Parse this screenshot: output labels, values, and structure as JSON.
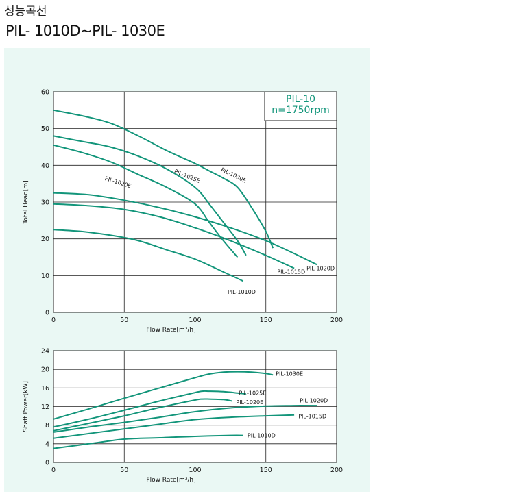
{
  "page": {
    "section_title": "성능곡선",
    "model_title": "PIL- 1010D~PIL- 1030E"
  },
  "colors": {
    "curve": "#12957a",
    "panel_background": "#eaf8f4",
    "grid": "#222222"
  },
  "chart_data": [
    {
      "type": "line",
      "xlabel": "Flow Rate[m³/h]",
      "ylabel": "Total Head[m]",
      "xlim": [
        0,
        200
      ],
      "ylim": [
        0,
        60
      ],
      "xticks": [
        "0",
        "50",
        "100",
        "150",
        "200"
      ],
      "yticks": [
        "0",
        "10",
        "20",
        "30",
        "40",
        "50",
        "60"
      ],
      "grid": true,
      "annotation": [
        "PIL-10",
        "n=1750rpm"
      ],
      "series": [
        {
          "name": "PIL-1030E",
          "x": [
            0,
            20,
            40,
            60,
            80,
            100,
            110,
            120,
            130,
            140,
            150,
            155
          ],
          "y": [
            55,
            53.5,
            51.5,
            48,
            44,
            40.5,
            38.5,
            36.5,
            34,
            28.5,
            22,
            17.5
          ]
        },
        {
          "name": "PIL-1025E",
          "x": [
            0,
            20,
            40,
            60,
            80,
            100,
            110,
            120,
            130,
            136
          ],
          "y": [
            48,
            46.5,
            45,
            42.5,
            39,
            34,
            29.5,
            24.5,
            19.5,
            15.5
          ]
        },
        {
          "name": "PIL-1020E",
          "x": [
            0,
            20,
            40,
            60,
            80,
            100,
            110,
            120,
            130
          ],
          "y": [
            45.5,
            43.5,
            41,
            37.5,
            34,
            29.5,
            24.5,
            19.5,
            15
          ]
        },
        {
          "name": "PIL-1020D",
          "x": [
            0,
            25,
            50,
            75,
            100,
            125,
            150,
            170,
            186
          ],
          "y": [
            32.5,
            32,
            30.5,
            28.5,
            26,
            23,
            19.5,
            16,
            13
          ]
        },
        {
          "name": "PIL-1015D",
          "x": [
            0,
            25,
            50,
            75,
            100,
            125,
            150,
            170
          ],
          "y": [
            29.5,
            29,
            28,
            26,
            23,
            19.5,
            15.5,
            12
          ]
        },
        {
          "name": "PIL-1010D",
          "x": [
            0,
            20,
            40,
            60,
            80,
            100,
            120,
            134
          ],
          "y": [
            22.5,
            22,
            21,
            19.5,
            17,
            14.5,
            11,
            8.5
          ]
        }
      ]
    },
    {
      "type": "line",
      "xlabel": "Flow Rate[m³/h]",
      "ylabel": "Shaft Power[kW]",
      "xlim": [
        0,
        200
      ],
      "ylim": [
        0,
        24
      ],
      "xticks": [
        "0",
        "50",
        "100",
        "150",
        "200"
      ],
      "yticks": [
        "0",
        "4",
        "8",
        "12",
        "16",
        "20",
        "24"
      ],
      "grid": true,
      "series": [
        {
          "name": "PIL-1030E",
          "x": [
            0,
            25,
            50,
            75,
            100,
            110,
            120,
            130,
            140,
            150,
            155
          ],
          "y": [
            9.3,
            11.5,
            13.8,
            16,
            18.2,
            19,
            19.4,
            19.5,
            19.4,
            19.1,
            18.8
          ]
        },
        {
          "name": "PIL-1025E",
          "x": [
            0,
            25,
            50,
            75,
            100,
            105,
            110,
            120,
            130,
            136
          ],
          "y": [
            7.6,
            9.3,
            11.2,
            13.2,
            15,
            15.3,
            15.3,
            15.2,
            14.9,
            14.7
          ]
        },
        {
          "name": "PIL-1020E",
          "x": [
            0,
            25,
            50,
            75,
            100,
            105,
            110,
            120,
            126
          ],
          "y": [
            6.8,
            8.4,
            10,
            11.8,
            13.4,
            13.6,
            13.6,
            13.5,
            13.2
          ]
        },
        {
          "name": "PIL-1020D",
          "x": [
            0,
            25,
            50,
            75,
            100,
            125,
            150,
            170,
            186
          ],
          "y": [
            6.5,
            7.6,
            8.6,
            9.7,
            10.9,
            11.7,
            12.1,
            12.2,
            12.2
          ]
        },
        {
          "name": "PIL-1015D",
          "x": [
            0,
            25,
            50,
            75,
            100,
            125,
            150,
            170
          ],
          "y": [
            5.2,
            6.2,
            7.2,
            8.2,
            9.2,
            9.7,
            10,
            10.2
          ]
        },
        {
          "name": "PIL-1010D",
          "x": [
            0,
            25,
            50,
            75,
            100,
            125,
            134
          ],
          "y": [
            3,
            4,
            5,
            5.3,
            5.6,
            5.8,
            5.8
          ]
        }
      ]
    }
  ]
}
